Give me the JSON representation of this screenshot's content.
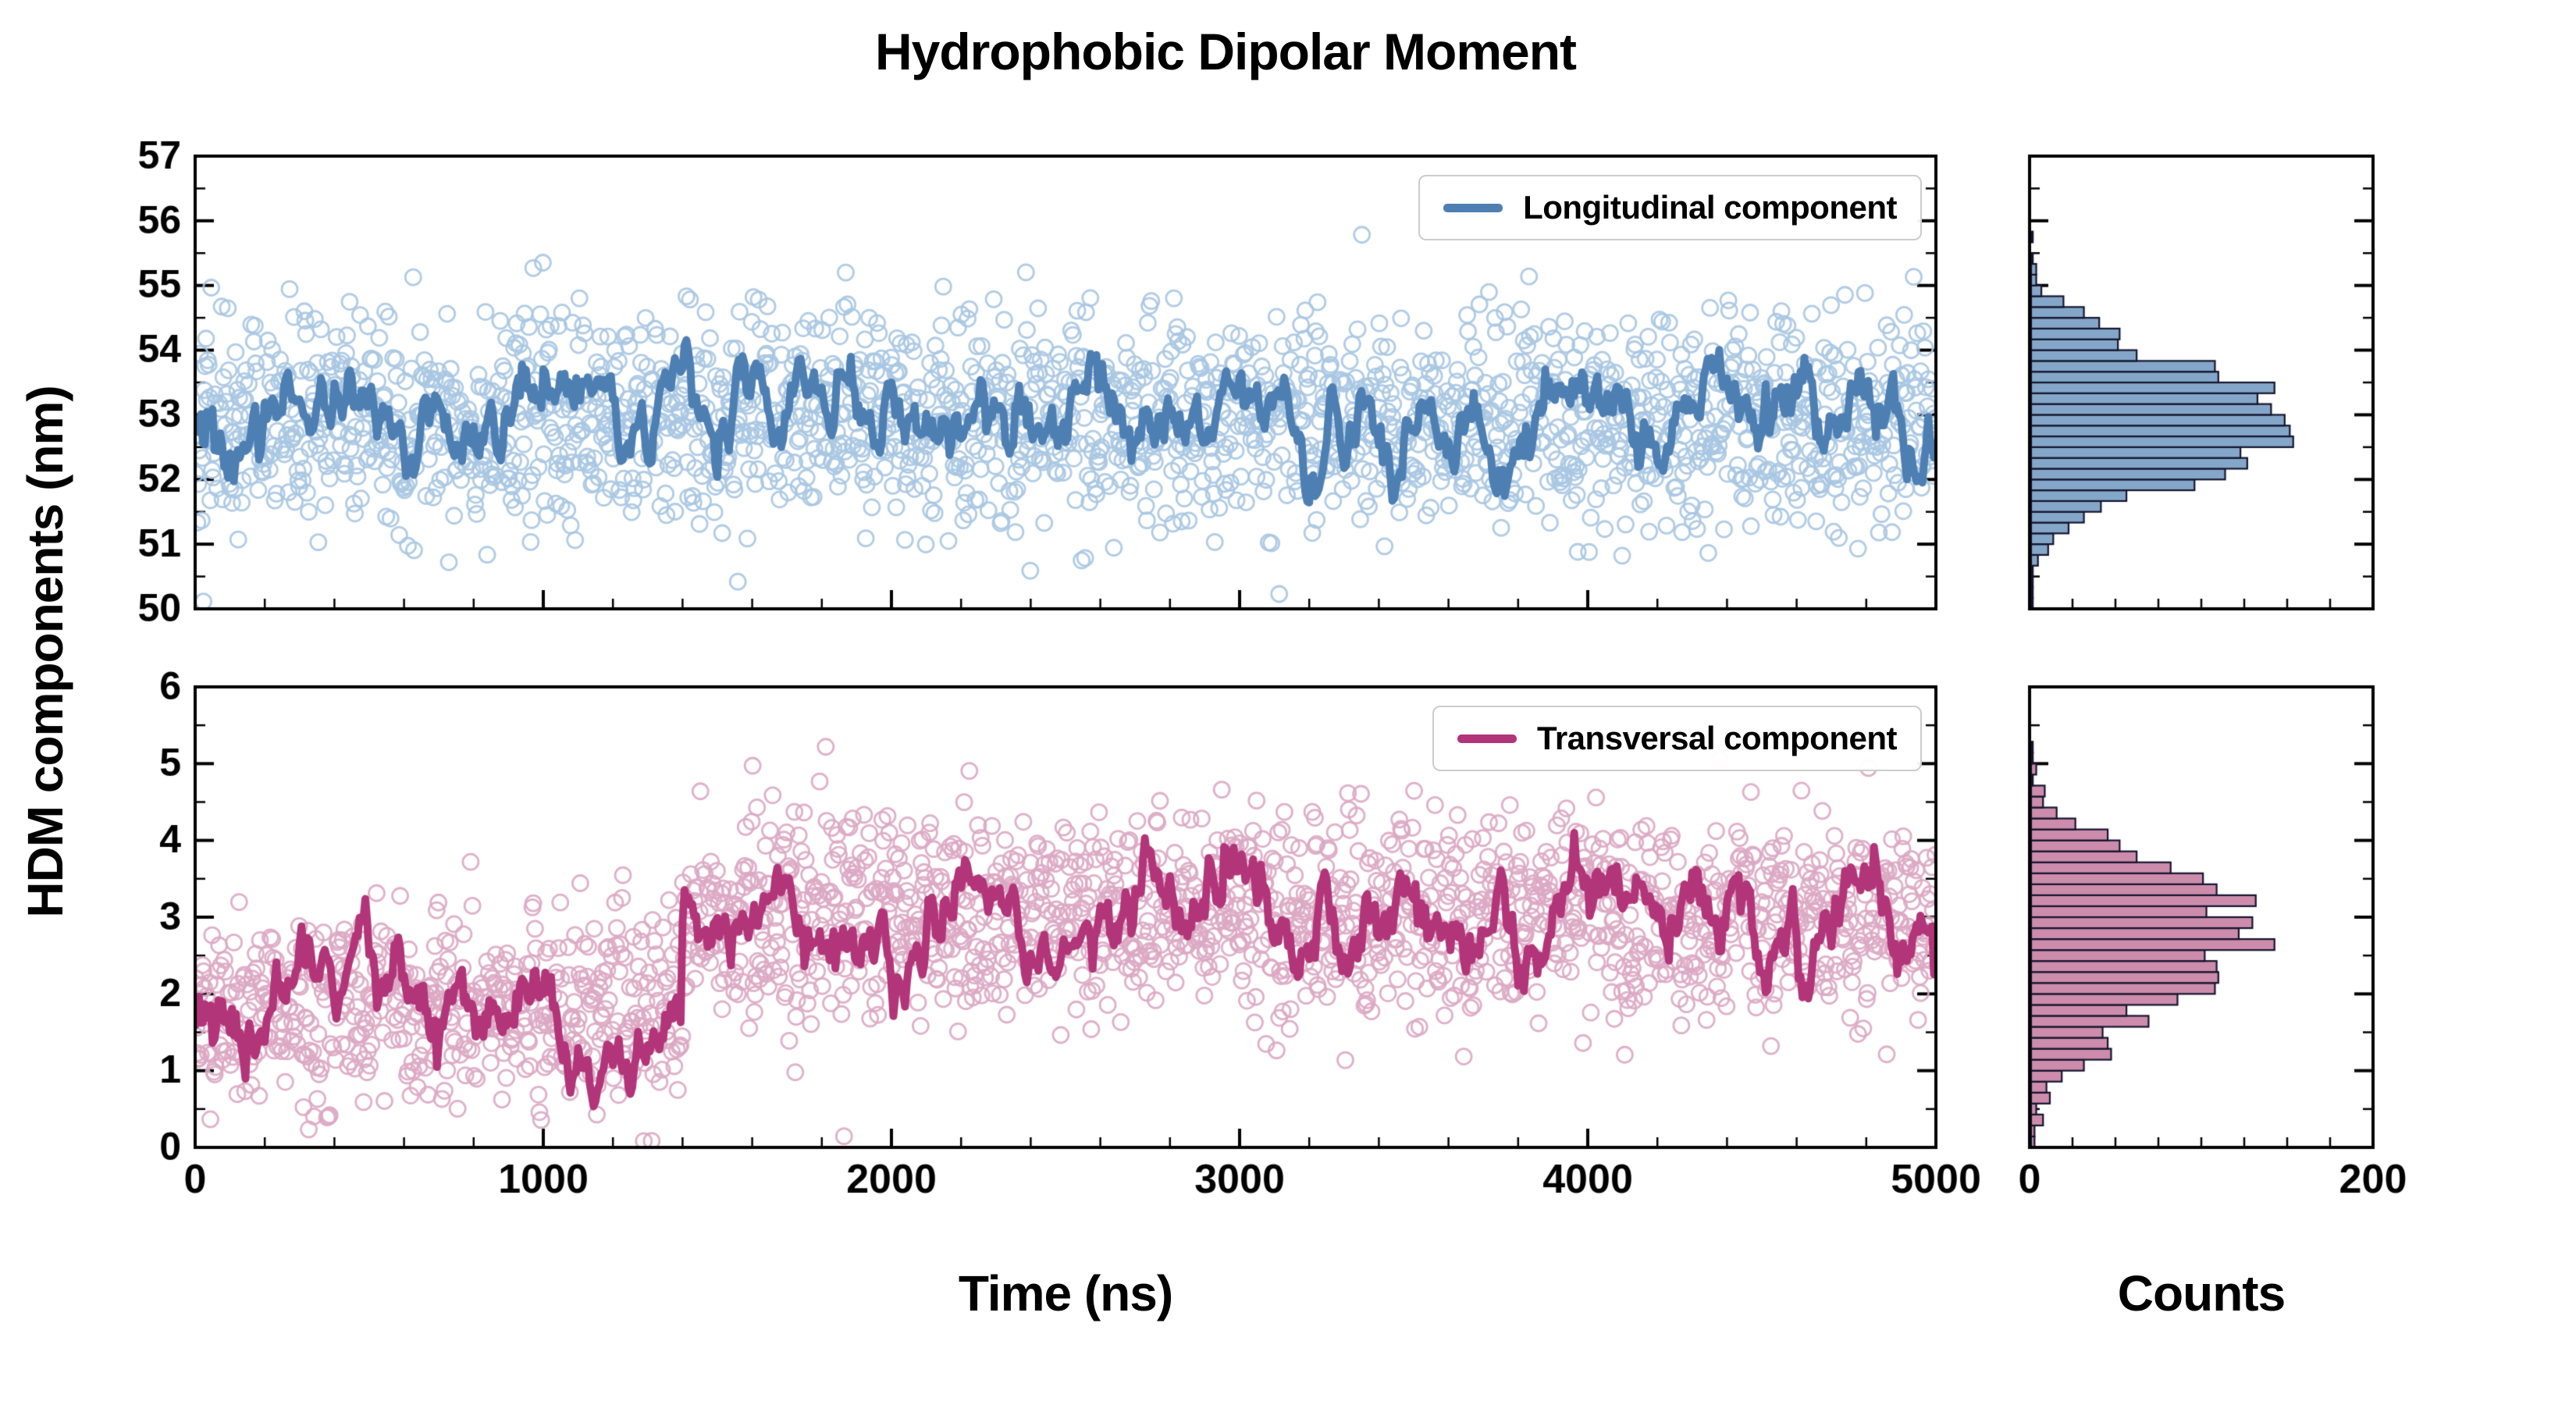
{
  "title": "Hydrophobic Dipolar Moment",
  "ylabel": "HDM components (nm)",
  "xlabel": "Time (ns)",
  "hist_xlabel": "Counts",
  "chart_data": [
    {
      "type": "scatter",
      "name": "longitudinal",
      "legend": "Longitudinal component",
      "x_range": [
        0,
        5000
      ],
      "x_ticks": [
        0,
        1000,
        2000,
        3000,
        4000,
        5000
      ],
      "x_minor_step": 200,
      "y_range": [
        50,
        57
      ],
      "y_ticks": [
        50,
        51,
        52,
        53,
        54,
        55,
        56,
        57
      ],
      "y_minor_step": 0.5,
      "n_points": 2000,
      "segments": [
        {
          "from": 0,
          "to": 5000,
          "mean": 52.9,
          "scatter_sd": 0.85
        }
      ],
      "line_sd": 0.3,
      "line_mean": 52.95,
      "colors": {
        "line": "#4d7fb3",
        "scatter": "#a9c6e2",
        "hist_fill": "#84a7c9",
        "hist_edge": "#14142e"
      },
      "histogram": {
        "range": [
          0,
          200
        ],
        "ticks": [
          0,
          200
        ],
        "minor_step": 25,
        "bins": 42,
        "peak_counts": 160,
        "peak_at": 52.9
      },
      "grid": false,
      "legend_position": "upper right"
    },
    {
      "type": "scatter",
      "name": "transversal",
      "legend": "Transversal component",
      "x_range": [
        0,
        5000
      ],
      "x_ticks": [
        0,
        1000,
        2000,
        3000,
        4000,
        5000
      ],
      "x_minor_step": 200,
      "y_range": [
        0,
        6
      ],
      "y_ticks": [
        0,
        1,
        2,
        3,
        4,
        5,
        6
      ],
      "y_minor_step": 0.5,
      "n_points": 2000,
      "segments": [
        {
          "from": 0,
          "to": 1400,
          "mean": 1.8,
          "scatter_sd": 0.6
        },
        {
          "from": 1400,
          "to": 5000,
          "mean": 3.0,
          "scatter_sd": 0.68
        }
      ],
      "line_sd": 0.27,
      "line_mean": null,
      "colors": {
        "line": "#b23579",
        "scatter": "#dca8c4",
        "hist_fill": "#cd8cab",
        "hist_edge": "#14142e"
      },
      "histogram": {
        "range": [
          0,
          200
        ],
        "ticks": [
          0,
          200
        ],
        "minor_step": 25,
        "bins": 42,
        "peak_counts": 150,
        "peak_at": 3.0
      },
      "grid": false,
      "legend_position": "upper right"
    }
  ],
  "style": {
    "background": "#ffffff",
    "axis_color": "#000000"
  }
}
